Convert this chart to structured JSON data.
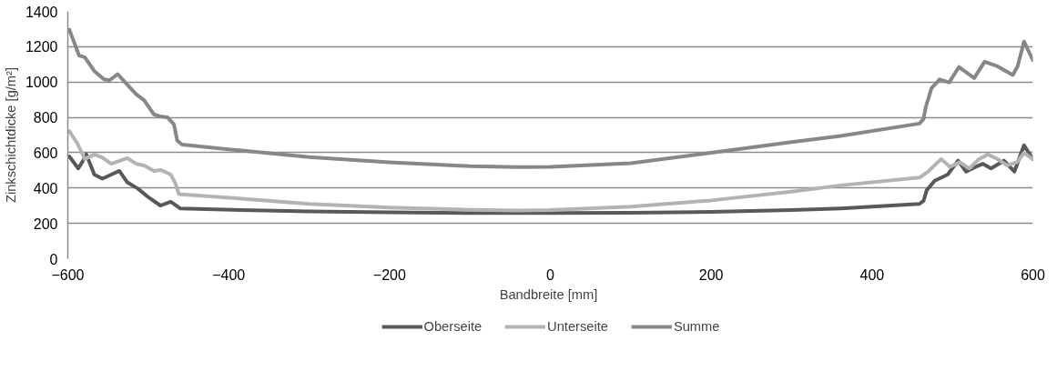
{
  "chart_data": {
    "type": "line",
    "xlabel": "Bandbreite  [mm]",
    "ylabel": "Zinkschichtdicke [g/m²]",
    "xlim": [
      -600,
      600
    ],
    "ylim": [
      0,
      1400
    ],
    "xticks": [
      -600,
      -400,
      -200,
      0,
      200,
      400,
      600
    ],
    "yticks": [
      0,
      200,
      400,
      600,
      800,
      1000,
      1200,
      1400
    ],
    "grid": "y",
    "legend": "bottom",
    "marker": "none",
    "line_style": "solid",
    "series": [
      {
        "name": "Oberseite",
        "color": "#595959",
        "x": [
          -598,
          -587,
          -581,
          -577,
          -567,
          -557,
          -546,
          -536,
          -526,
          -513,
          -499,
          -485,
          -472,
          -460,
          -384,
          -300,
          -200,
          -100,
          0,
          100,
          200,
          300,
          361,
          459,
          464,
          468,
          478,
          494,
          507,
          517,
          529,
          538,
          548,
          564,
          577,
          589,
          600
        ],
        "values": [
          578,
          511,
          555,
          590,
          476,
          453,
          476,
          497,
          432,
          397,
          345,
          301,
          322,
          284,
          275,
          268,
          262,
          258,
          258,
          260,
          265,
          275,
          285,
          310,
          327,
          388,
          441,
          476,
          555,
          493,
          520,
          537,
          511,
          555,
          493,
          642,
          563
        ]
      },
      {
        "name": "Unterseite",
        "color": "#b3b3b3",
        "x": [
          -598,
          -588,
          -579,
          -567,
          -557,
          -546,
          -526,
          -515,
          -505,
          -493,
          -484,
          -472,
          -466,
          -462,
          -384,
          -300,
          -200,
          -100,
          -40,
          0,
          100,
          200,
          300,
          361,
          459,
          470,
          486,
          497,
          509,
          521,
          533,
          544,
          556,
          568,
          580,
          589,
          600
        ],
        "values": [
          721,
          651,
          564,
          590,
          572,
          537,
          569,
          537,
          528,
          497,
          502,
          476,
          424,
          366,
          340,
          310,
          290,
          277,
          273,
          276,
          295,
          330,
          380,
          415,
          459,
          494,
          564,
          520,
          546,
          511,
          564,
          590,
          564,
          528,
          546,
          599,
          563
        ]
      },
      {
        "name": "Summe",
        "color": "#878787",
        "x": [
          -598,
          -586,
          -579,
          -567,
          -555,
          -548,
          -538,
          -524,
          -515,
          -505,
          -493,
          -485,
          -476,
          -468,
          -464,
          -458,
          -384,
          -300,
          -200,
          -100,
          -40,
          0,
          100,
          200,
          300,
          361,
          459,
          464,
          467,
          474,
          484,
          496,
          508,
          527,
          540,
          556,
          575,
          581,
          589,
          600
        ],
        "values": [
          1295,
          1150,
          1141,
          1062,
          1015,
          1010,
          1045,
          975,
          931,
          896,
          817,
          805,
          800,
          760,
          669,
          646,
          612,
          575,
          545,
          524,
          518,
          520,
          540,
          600,
          660,
          695,
          765,
          791,
          861,
          966,
          1015,
          998,
          1085,
          1022,
          1115,
          1089,
          1040,
          1089,
          1229,
          1124
        ]
      }
    ]
  }
}
